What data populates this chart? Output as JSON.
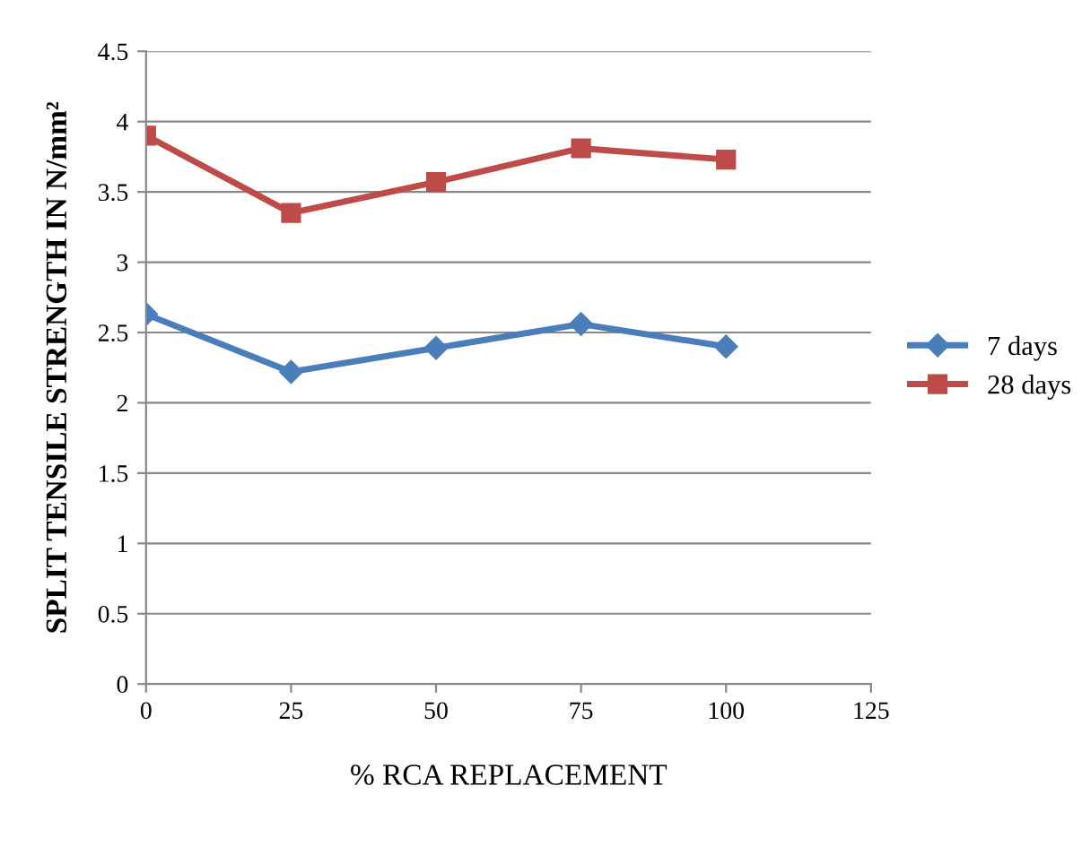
{
  "chart_data": {
    "type": "line",
    "xlabel": "% RCA REPLACEMENT",
    "ylabel": "SPLIT TENSILE STRENGTH IN N/mm²",
    "x": [
      0,
      25,
      50,
      75,
      100
    ],
    "series": [
      {
        "name": "7 days",
        "color": "#4a7ebb",
        "marker": "diamond",
        "values": [
          2.63,
          2.22,
          2.39,
          2.56,
          2.4
        ]
      },
      {
        "name": "28 days",
        "color": "#be4b48",
        "marker": "square",
        "values": [
          3.9,
          3.35,
          3.57,
          3.81,
          3.73
        ]
      }
    ],
    "xlim": [
      0,
      125
    ],
    "xticks": [
      0,
      25,
      50,
      75,
      100,
      125
    ],
    "ylim": [
      0,
      4.5
    ],
    "yticks": [
      0,
      0.5,
      1,
      1.5,
      2,
      2.5,
      3,
      3.5,
      4,
      4.5
    ],
    "grid": "y",
    "legend": "right",
    "line_style": "solid"
  }
}
